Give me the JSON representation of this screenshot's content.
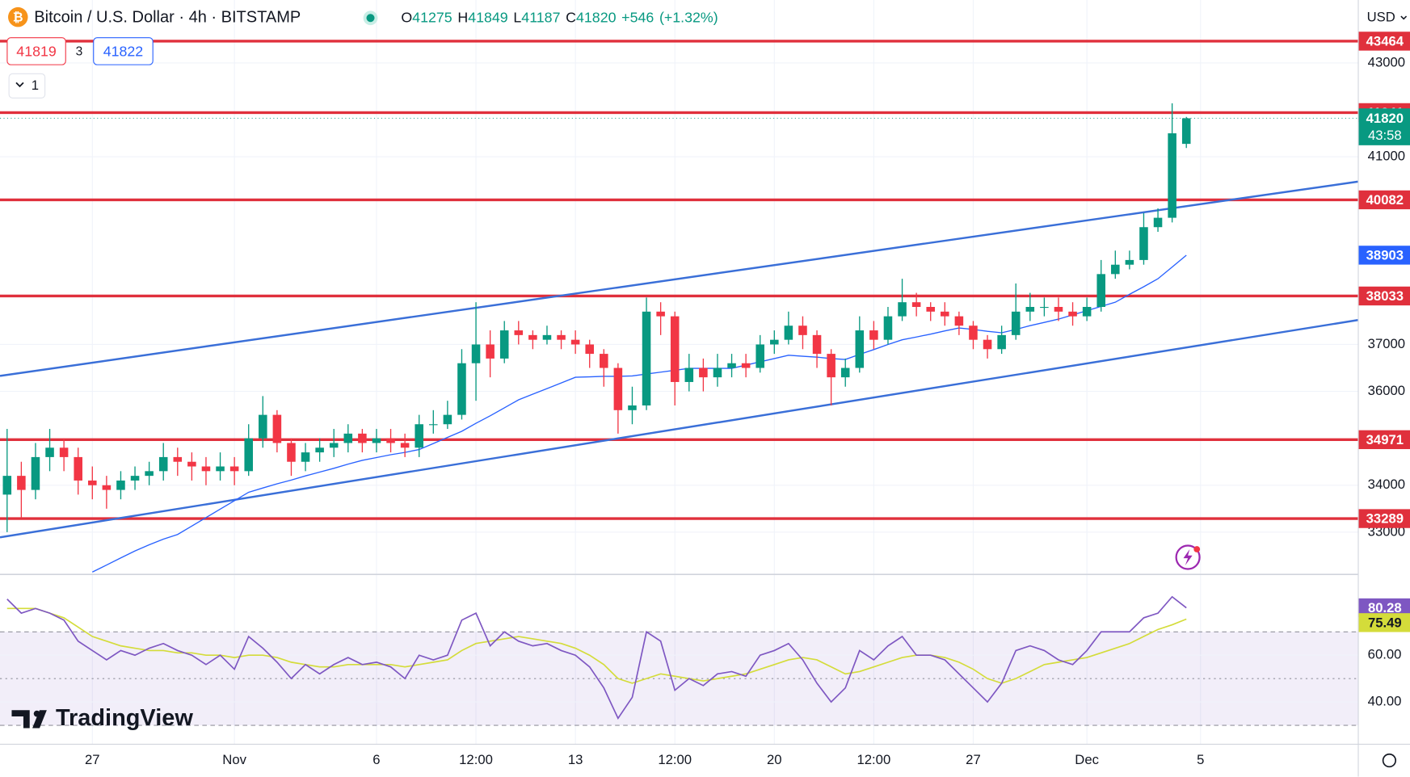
{
  "header": {
    "title": "Bitcoin / U.S. Dollar · 4h · BITSTAMP",
    "o_label": "O",
    "h_label": "H",
    "l_label": "L",
    "c_label": "C",
    "change": "+546",
    "change_pct": "(+1.32%)",
    "bid": "41819",
    "spread": "3",
    "ask": "41822",
    "interval_count": "1",
    "currency": "USD",
    "countdown": "43:58",
    "brand": "TradingView"
  },
  "chart_data": {
    "type": "candlestick",
    "xlim": [
      -0.5,
      95.07
    ],
    "ylim": [
      32119,
      44341
    ],
    "xticks": [
      {
        "value": 6,
        "label": "27"
      },
      {
        "value": 16,
        "label": "Nov"
      },
      {
        "value": 26,
        "label": "6"
      },
      {
        "value": 33,
        "label": "12:00"
      },
      {
        "value": 40,
        "label": "13"
      },
      {
        "value": 47,
        "label": "12:00"
      },
      {
        "value": 54,
        "label": "20"
      },
      {
        "value": 61,
        "label": "12:00"
      },
      {
        "value": 68,
        "label": "27"
      },
      {
        "value": 76,
        "label": "Dec"
      },
      {
        "value": 84,
        "label": "5"
      }
    ],
    "yticks": [
      33000,
      34000,
      36000,
      37000,
      41000,
      43000
    ],
    "grid": true,
    "up_color": "#089981",
    "down_color": "#f23645",
    "candles": {
      "open": [
        33800,
        34200,
        33900,
        34600,
        34800,
        34600,
        34100,
        34000,
        33900,
        34100,
        34200,
        34300,
        34600,
        34500,
        34400,
        34300,
        34400,
        34300,
        35000,
        35500,
        34900,
        34500,
        34700,
        34800,
        34900,
        35100,
        34900,
        35000,
        34900,
        34800,
        35300,
        35300,
        35500,
        36600,
        37000,
        36700,
        37300,
        37200,
        37100,
        37200,
        37100,
        37000,
        36800,
        36500,
        35600,
        35700,
        37700,
        37600,
        36200,
        36500,
        36300,
        36500,
        36600,
        36500,
        37000,
        37100,
        37400,
        37200,
        36800,
        36300,
        36500,
        37300,
        37100,
        37600,
        37900,
        37800,
        37700,
        37600,
        37400,
        37100,
        36900,
        37200,
        37700,
        37800,
        37800,
        37700,
        37600,
        37800,
        38500,
        38700,
        38800,
        39500,
        39700,
        41275
      ],
      "high": [
        35200,
        34500,
        34900,
        35200,
        35000,
        34800,
        34400,
        34200,
        34300,
        34400,
        34500,
        34900,
        34800,
        34700,
        34600,
        34700,
        34600,
        35300,
        35900,
        35600,
        35000,
        34900,
        35000,
        35200,
        35300,
        35200,
        35200,
        35200,
        35100,
        35500,
        35600,
        35800,
        36900,
        37900,
        37300,
        37500,
        37500,
        37300,
        37400,
        37300,
        37300,
        37100,
        36900,
        36600,
        36100,
        38000,
        37900,
        37700,
        36800,
        36700,
        36800,
        36800,
        36800,
        37200,
        37300,
        37700,
        37600,
        37300,
        36900,
        36700,
        37600,
        37500,
        37800,
        38400,
        38100,
        37900,
        37900,
        37700,
        37500,
        37200,
        37400,
        38300,
        38100,
        38000,
        38000,
        37900,
        38000,
        38800,
        39000,
        39000,
        39800,
        39900,
        42140,
        41849
      ],
      "low": [
        33000,
        33300,
        33700,
        34300,
        34300,
        33800,
        33700,
        33500,
        33700,
        33900,
        34000,
        34100,
        34200,
        34100,
        34000,
        34100,
        34000,
        34200,
        34800,
        34700,
        34200,
        34300,
        34500,
        34600,
        34700,
        34700,
        34700,
        34700,
        34600,
        34600,
        35100,
        35200,
        35400,
        35800,
        36300,
        36600,
        37000,
        36900,
        37000,
        36900,
        36800,
        36500,
        36100,
        35100,
        35300,
        35600,
        37200,
        35700,
        36000,
        36000,
        36100,
        36300,
        36300,
        36400,
        36800,
        37000,
        36900,
        36500,
        35700,
        36100,
        36400,
        36900,
        37000,
        37500,
        37600,
        37500,
        37400,
        37200,
        36900,
        36700,
        36800,
        37100,
        37500,
        37600,
        37500,
        37400,
        37500,
        37700,
        38400,
        38600,
        38700,
        39400,
        39600,
        41187
      ],
      "close": [
        34200,
        33900,
        34600,
        34800,
        34600,
        34100,
        34000,
        33900,
        34100,
        34200,
        34300,
        34600,
        34500,
        34400,
        34300,
        34400,
        34300,
        35000,
        35500,
        34900,
        34500,
        34700,
        34800,
        34900,
        35100,
        34900,
        35000,
        34900,
        34800,
        35300,
        35300,
        35500,
        36600,
        37000,
        36700,
        37300,
        37200,
        37100,
        37200,
        37100,
        37000,
        36800,
        36500,
        35600,
        35700,
        37700,
        37600,
        36200,
        36500,
        36300,
        36500,
        36600,
        36500,
        37000,
        37100,
        37400,
        37200,
        36800,
        36300,
        36500,
        37300,
        37100,
        37600,
        37900,
        37800,
        37700,
        37600,
        37400,
        37100,
        36900,
        37200,
        37700,
        37800,
        37800,
        37700,
        37600,
        37800,
        38500,
        38700,
        38800,
        39500,
        39700,
        41500,
        41820
      ]
    },
    "ma": {
      "color": "#2962ff",
      "values": [
        null,
        null,
        null,
        null,
        null,
        null,
        32150,
        32300,
        32450,
        32600,
        32730,
        32850,
        32950,
        33130,
        33310,
        33490,
        33670,
        33850,
        33940,
        34030,
        34110,
        34200,
        34280,
        34360,
        34450,
        34530,
        34590,
        34650,
        34700,
        34760,
        34890,
        35020,
        35150,
        35320,
        35480,
        35650,
        35820,
        35940,
        36060,
        36180,
        36300,
        36310,
        36320,
        36320,
        36330,
        36370,
        36410,
        36450,
        36490,
        36490,
        36490,
        36490,
        36560,
        36630,
        36700,
        36770,
        36750,
        36730,
        36700,
        36680,
        36790,
        36890,
        37000,
        37100,
        37160,
        37220,
        37290,
        37350,
        37320,
        37280,
        37250,
        37320,
        37400,
        37470,
        37540,
        37630,
        37720,
        37810,
        37900,
        38070,
        38230,
        38400,
        38650,
        38903
      ]
    },
    "trendlines": [
      {
        "color": "#3a6fd8",
        "x": [
          -0.5,
          95.07
        ],
        "y": [
          36330,
          40470
        ]
      },
      {
        "color": "#3a6fd8",
        "x": [
          -0.5,
          95.07
        ],
        "y": [
          32890,
          37520
        ]
      }
    ],
    "levels": [
      43464,
      41941,
      40082,
      38033,
      34971,
      33289
    ],
    "level_color": "#e0303c",
    "rsi": {
      "ylim": [
        21.9,
        94.2
      ],
      "yticks": [
        {
          "value": 40,
          "label": "40.00"
        },
        {
          "value": 60,
          "label": "60.00"
        }
      ],
      "bands": {
        "upper": 70,
        "middle": 50,
        "lower": 30
      },
      "band_color": "#7e57c2",
      "color": "#7e57c2",
      "values": [
        84,
        78,
        80,
        78,
        75,
        66,
        62,
        58,
        62,
        60,
        63,
        65,
        62,
        60,
        56,
        60,
        54,
        68,
        63,
        57,
        50,
        56,
        52,
        56,
        59,
        56,
        57,
        55,
        50,
        60,
        58,
        60,
        75,
        78,
        64,
        70,
        66,
        64,
        65,
        62,
        60,
        55,
        46,
        33,
        42,
        70,
        66,
        45,
        50,
        47,
        52,
        53,
        51,
        60,
        62,
        65,
        58,
        48,
        40,
        46,
        62,
        58,
        64,
        68,
        60,
        60,
        58,
        52,
        46,
        40,
        48,
        62,
        64,
        62,
        58,
        56,
        62,
        70,
        70,
        70,
        76,
        78,
        85,
        80.28
      ],
      "ma_color": "#d4dc3a",
      "ma_values": [
        80,
        80,
        80,
        78,
        76,
        72,
        68,
        66,
        64,
        63,
        62,
        62,
        61,
        61,
        60,
        60,
        59,
        60,
        60,
        59,
        57,
        56,
        55,
        55,
        56,
        56,
        56,
        56,
        55,
        56,
        57,
        58,
        62,
        65,
        66,
        67,
        68,
        67,
        66,
        65,
        63,
        60,
        56,
        50,
        48,
        50,
        52,
        51,
        50,
        49,
        50,
        51,
        52,
        54,
        56,
        58,
        59,
        58,
        55,
        52,
        53,
        55,
        57,
        59,
        60,
        60,
        59,
        57,
        54,
        50,
        48,
        50,
        53,
        56,
        57,
        58,
        59,
        61,
        63,
        65,
        68,
        71,
        73,
        75.49
      ]
    }
  }
}
